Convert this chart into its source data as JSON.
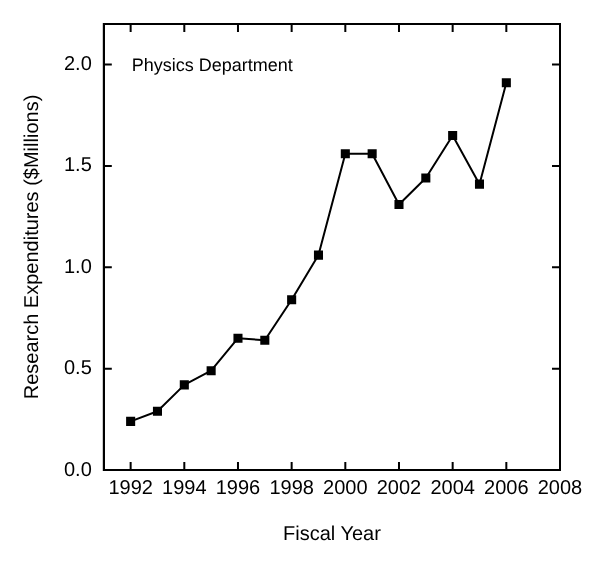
{
  "chart_data": {
    "type": "line",
    "annotations": [
      "Physics Department"
    ],
    "xlabel": "Fiscal Year",
    "ylabel": "Research Expenditures ($Millions)",
    "x": [
      1992,
      1993,
      1994,
      1995,
      1996,
      1997,
      1998,
      1999,
      2000,
      2001,
      2002,
      2003,
      2004,
      2005,
      2006
    ],
    "series": [
      {
        "color": "#000000",
        "values": [
          0.24,
          0.29,
          0.42,
          0.49,
          0.65,
          0.64,
          0.84,
          1.06,
          1.56,
          1.56,
          1.31,
          1.44,
          1.65,
          1.41,
          1.91
        ]
      }
    ],
    "xlim": [
      1991,
      2008
    ],
    "xticks": [
      1992,
      1994,
      1996,
      1998,
      2000,
      2002,
      2004,
      2006,
      2008
    ],
    "ylim": [
      0,
      2.2
    ],
    "yticks": [
      {
        "value": 0,
        "label": "0.0"
      },
      {
        "value": 0.5,
        "label": "0.5"
      },
      {
        "value": 1,
        "label": "1.0"
      },
      {
        "value": 1.5,
        "label": "1.5"
      },
      {
        "value": 2,
        "label": "2.0"
      }
    ],
    "grid": false,
    "legend": false,
    "marker": "square",
    "line_style": "solid"
  }
}
